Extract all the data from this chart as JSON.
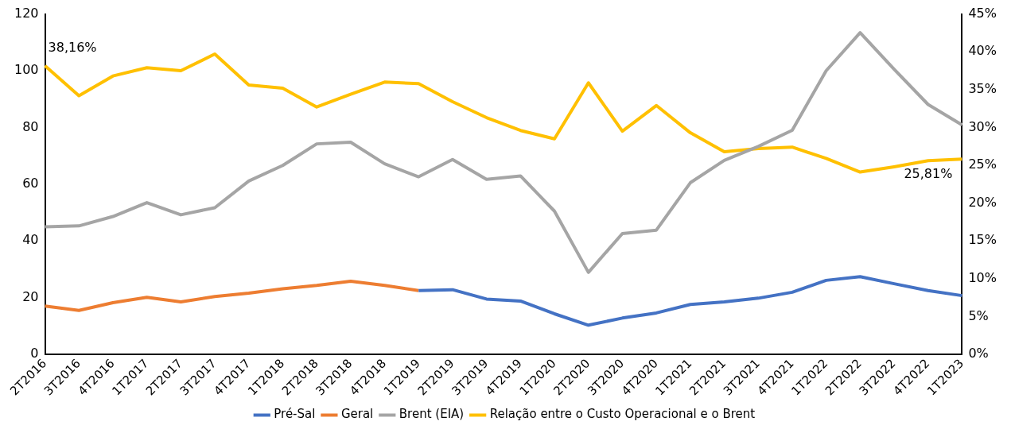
{
  "chart_data": {
    "type": "line",
    "categories": [
      "2T2016",
      "3T2016",
      "4T2016",
      "1T2017",
      "2T2017",
      "3T2017",
      "4T2017",
      "1T2018",
      "2T2018",
      "3T2018",
      "4T2018",
      "1T2019",
      "2T2019",
      "3T2019",
      "4T2019",
      "1T2020",
      "2T2020",
      "3T2020",
      "4T2020",
      "1T2021",
      "2T2021",
      "3T2021",
      "4T2021",
      "1T2022",
      "2T2022",
      "3T2022",
      "4T2022",
      "1T2023"
    ],
    "series": [
      {
        "name": "Pré-Sal",
        "color": "#4472c4",
        "values": [
          null,
          null,
          null,
          null,
          null,
          null,
          null,
          null,
          null,
          null,
          null,
          22.5,
          22.8,
          19.5,
          18.8,
          14.3,
          10.3,
          12.8,
          14.6,
          17.6,
          18.5,
          19.8,
          21.9,
          26.1,
          27.4,
          24.9,
          22.5,
          20.7
        ]
      },
      {
        "name": "Geral",
        "color": "#ed7d31",
        "values": [
          17,
          15.5,
          18.2,
          20.1,
          18.5,
          20.4,
          21.6,
          23.1,
          24.3,
          25.8,
          24.3,
          22.5,
          null,
          null,
          null,
          null,
          null,
          null,
          null,
          null,
          null,
          null,
          null,
          null,
          null,
          null,
          null,
          null
        ]
      },
      {
        "name": "Brent (EIA)",
        "color": "#a5a5a5",
        "values": [
          45,
          45.3,
          48.6,
          53.5,
          49.2,
          51.7,
          61.1,
          66.6,
          74.2,
          74.8,
          67.2,
          62.6,
          68.7,
          61.7,
          62.9,
          50.5,
          28.9,
          42.6,
          43.8,
          60.5,
          68.4,
          73.3,
          79,
          100,
          113.4,
          100.5,
          88.1,
          80.9
        ]
      },
      {
        "name": "Relação entre o Custo Operacional e o Brent",
        "color": "#ffc000",
        "axis": "y2",
        "values": [
          38.16,
          34.2,
          36.8,
          37.9,
          37.5,
          39.7,
          35.6,
          35.2,
          32.7,
          34.4,
          36,
          35.8,
          33.4,
          31.3,
          29.6,
          28.5,
          35.9,
          29.5,
          32.9,
          29.3,
          26.8,
          27.2,
          27.4,
          25.9,
          24.1,
          24.8,
          25.6,
          25.81
        ],
        "value_labels": [
          "38,16%",
          null,
          null,
          null,
          null,
          null,
          null,
          null,
          null,
          null,
          null,
          null,
          null,
          null,
          null,
          null,
          null,
          null,
          null,
          null,
          null,
          null,
          null,
          null,
          null,
          null,
          null,
          "25,81%"
        ]
      }
    ],
    "ylim": [
      0,
      120
    ],
    "yticks": [
      0,
      20,
      40,
      60,
      80,
      100,
      120
    ],
    "y2lim": [
      0,
      45
    ],
    "y2ticks": [
      {
        "value": 0,
        "label": "0%"
      },
      {
        "value": 5,
        "label": "5%"
      },
      {
        "value": 10,
        "label": "10%"
      },
      {
        "value": 15,
        "label": "15%"
      },
      {
        "value": 20,
        "label": "20%"
      },
      {
        "value": 25,
        "label": "25%"
      },
      {
        "value": 30,
        "label": "30%"
      },
      {
        "value": 35,
        "label": "35%"
      },
      {
        "value": 40,
        "label": "40%"
      },
      {
        "value": 45,
        "label": "45%"
      }
    ],
    "legend": "bottom",
    "grid": false,
    "marker": "none",
    "line_style": "solid"
  }
}
